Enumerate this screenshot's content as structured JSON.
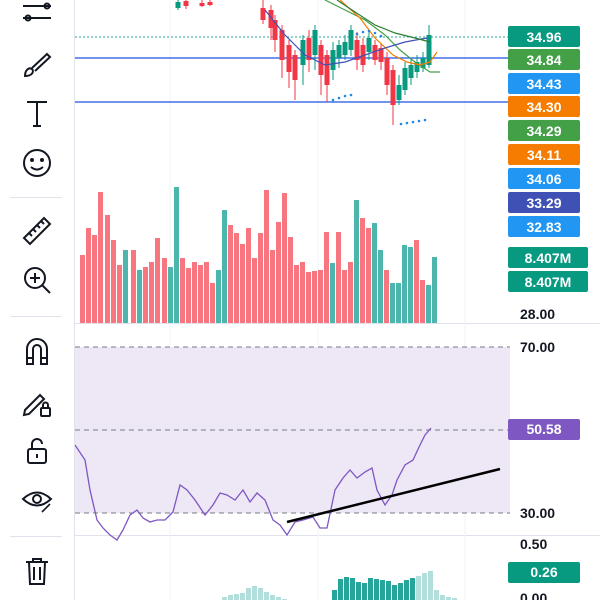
{
  "toolbar": {
    "tools": [
      {
        "name": "trend-line-tools",
        "icon": "lines-icon"
      },
      {
        "name": "brush-tool",
        "icon": "brush-icon"
      },
      {
        "name": "text-tool",
        "icon": "text-icon"
      },
      {
        "name": "emoji-tool",
        "icon": "emoji-icon"
      },
      {
        "name": "ruler-tool",
        "icon": "ruler-icon"
      },
      {
        "name": "zoom-in-tool",
        "icon": "zoom-in-icon"
      },
      {
        "name": "magnet-tool",
        "icon": "magnet-icon"
      },
      {
        "name": "lock-drawings-tool",
        "icon": "pencil-lock-icon"
      },
      {
        "name": "lock-all-tool",
        "icon": "lock-open-icon"
      },
      {
        "name": "hide-drawings-tool",
        "icon": "eye-icon"
      },
      {
        "name": "remove-drawings-tool",
        "icon": "trash-icon"
      }
    ]
  },
  "price_scale": {
    "labels": [
      {
        "text": "34.96",
        "color": "#089981"
      },
      {
        "text": "34.84",
        "color": "#43a047"
      },
      {
        "text": "34.43",
        "color": "#2196f3"
      },
      {
        "text": "34.30",
        "color": "#f57c00"
      },
      {
        "text": "34.29",
        "color": "#43a047"
      },
      {
        "text": "34.11",
        "color": "#f57c00"
      },
      {
        "text": "34.06",
        "color": "#2196f3"
      },
      {
        "text": "33.29",
        "color": "#3f51b5"
      },
      {
        "text": "32.83",
        "color": "#2196f3"
      }
    ],
    "volume_labels": [
      {
        "text": "8.407M",
        "color": "#089981"
      },
      {
        "text": "8.407M",
        "color": "#089981"
      }
    ],
    "bottom_tick": "28.00"
  },
  "rsi": {
    "ticks": [
      "70.00",
      "30.00"
    ],
    "current_label": "50.58",
    "current_color": "#7e57c2",
    "line_color": "#7e57c2",
    "band_color": "#ede7f6"
  },
  "macd": {
    "ticks": [
      "0.50",
      "0.00"
    ],
    "current_label": "0.26",
    "current_color": "#089981"
  },
  "colors": {
    "up": "#089981",
    "down": "#f23645",
    "volume_up": "#4db6ac",
    "volume_down": "#f7767f"
  },
  "chart_data": {
    "type": "candlestick",
    "price_levels": [
      34.96,
      34.84,
      34.43,
      34.3,
      34.29,
      34.11,
      34.06,
      33.29,
      32.83
    ],
    "volume_last": "8.407M",
    "rsi_last": 50.58,
    "rsi_bands": [
      30,
      70
    ],
    "macd_last": 0.26
  }
}
